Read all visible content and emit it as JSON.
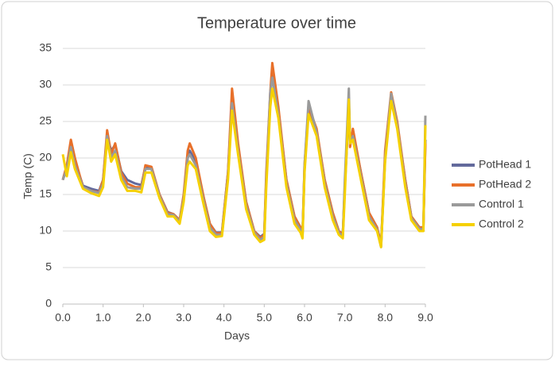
{
  "chart_data": {
    "type": "line",
    "title": "Temperature over time",
    "x_label": "Days",
    "y_label": "Temp (C)",
    "x": [
      0,
      0.1,
      0.2,
      0.3,
      0.5,
      0.7,
      0.9,
      1.0,
      1.1,
      1.2,
      1.3,
      1.45,
      1.6,
      1.8,
      1.95,
      2.05,
      2.2,
      2.4,
      2.6,
      2.75,
      2.9,
      3.0,
      3.1,
      3.15,
      3.3,
      3.5,
      3.65,
      3.8,
      3.95,
      4.1,
      4.2,
      4.35,
      4.55,
      4.75,
      4.9,
      5.0,
      5.05,
      5.15,
      5.2,
      5.35,
      5.55,
      5.75,
      5.9,
      5.95,
      6.0,
      6.1,
      6.3,
      6.5,
      6.7,
      6.85,
      6.95,
      7.0,
      7.1,
      7.13,
      7.2,
      7.4,
      7.6,
      7.8,
      7.9,
      8.0,
      8.15,
      8.3,
      8.5,
      8.65,
      8.85,
      8.95,
      9.0
    ],
    "series": [
      {
        "name": "PotHead 1",
        "color": "#636a9c",
        "values": [
          17,
          19,
          22,
          19.5,
          16.2,
          15.8,
          15.5,
          17,
          23,
          21,
          21.8,
          18.2,
          17,
          16.5,
          16.3,
          18.8,
          18.5,
          15,
          12.6,
          12.3,
          11.5,
          14.5,
          20,
          21,
          19.5,
          14.5,
          11,
          9.8,
          9.8,
          18,
          28,
          21.5,
          14,
          10,
          9.2,
          9.6,
          17,
          28,
          32,
          26.5,
          17,
          12,
          10.5,
          9.5,
          18.5,
          26.5,
          23.5,
          17,
          12.5,
          10,
          9.6,
          16,
          27,
          23,
          23.5,
          18,
          12.5,
          10.5,
          8.2,
          20,
          28.5,
          24.5,
          17,
          12,
          10.5,
          10.5,
          22.5
        ]
      },
      {
        "name": "PotHead 2",
        "color": "#e8702a",
        "values": [
          17,
          19,
          22.5,
          20,
          16,
          15.5,
          15.3,
          17,
          23.8,
          20.5,
          22,
          18,
          16.5,
          16,
          16,
          19,
          18.8,
          15,
          12.5,
          12.3,
          11.5,
          15,
          21,
          22,
          20,
          14.5,
          11,
          9.7,
          9.7,
          18,
          29.5,
          22,
          14,
          10,
          9,
          9.5,
          18,
          29,
          33,
          27,
          17,
          12,
          10.5,
          9.5,
          19,
          27,
          24,
          17,
          12.5,
          10,
          9.5,
          16,
          28,
          21.5,
          24,
          18,
          12.5,
          10.5,
          8,
          21,
          29,
          25,
          17,
          12,
          10.5,
          10.5,
          22
        ]
      },
      {
        "name": "Control 1",
        "color": "#9a9a9a",
        "values": [
          17,
          18.5,
          21.5,
          19,
          16,
          15.5,
          15.2,
          16.5,
          23,
          20,
          21,
          17.5,
          16,
          15.8,
          15.8,
          18.5,
          18.5,
          14.8,
          12.3,
          12.2,
          11.3,
          14.5,
          20,
          20.5,
          19,
          14,
          10.5,
          9.5,
          9.5,
          17.5,
          27.5,
          21,
          13.5,
          9.8,
          8.8,
          9.2,
          17,
          29,
          31,
          26,
          16.5,
          11.5,
          10.2,
          9.2,
          19,
          27.8,
          23.5,
          16.5,
          12,
          9.8,
          9.3,
          17,
          29.5,
          22,
          23,
          17.5,
          12,
          10.2,
          7.8,
          20,
          28.8,
          24.5,
          16.5,
          11.8,
          10.3,
          10.3,
          25.8
        ]
      },
      {
        "name": "Control 2",
        "color": "#f5d000",
        "values": [
          20.5,
          17.5,
          20.8,
          18.5,
          15.8,
          15.2,
          14.8,
          16,
          22.5,
          19.5,
          20.5,
          17,
          15.5,
          15.5,
          15.3,
          18,
          18,
          14.5,
          12,
          12,
          11,
          14,
          19,
          19.5,
          18.5,
          13.5,
          10,
          9.2,
          9.3,
          17,
          26.5,
          20.5,
          13,
          9.5,
          8.5,
          8.8,
          16,
          27,
          29.5,
          25.5,
          16,
          11,
          9.8,
          9,
          18,
          26,
          23,
          16,
          11.5,
          9.5,
          9,
          15,
          28,
          22,
          22.5,
          17,
          11.5,
          10,
          7.8,
          19.5,
          27.8,
          24,
          16,
          11.5,
          10,
          10,
          24.5
        ]
      }
    ],
    "xlim": [
      0,
      9
    ],
    "xticks": [
      {
        "value": 0,
        "label": "0.0"
      },
      {
        "value": 1,
        "label": "1.0"
      },
      {
        "value": 2,
        "label": "2.0"
      },
      {
        "value": 3,
        "label": "3.0"
      },
      {
        "value": 4,
        "label": "4.0"
      },
      {
        "value": 5,
        "label": "5.0"
      },
      {
        "value": 6,
        "label": "6.0"
      },
      {
        "value": 7,
        "label": "7.0"
      },
      {
        "value": 8,
        "label": "8.0"
      },
      {
        "value": 9,
        "label": "9.0"
      }
    ],
    "ylim": [
      0,
      35
    ],
    "yticks": [
      0,
      5,
      10,
      15,
      20,
      25,
      30,
      35
    ],
    "grid": true,
    "legend": "right"
  }
}
